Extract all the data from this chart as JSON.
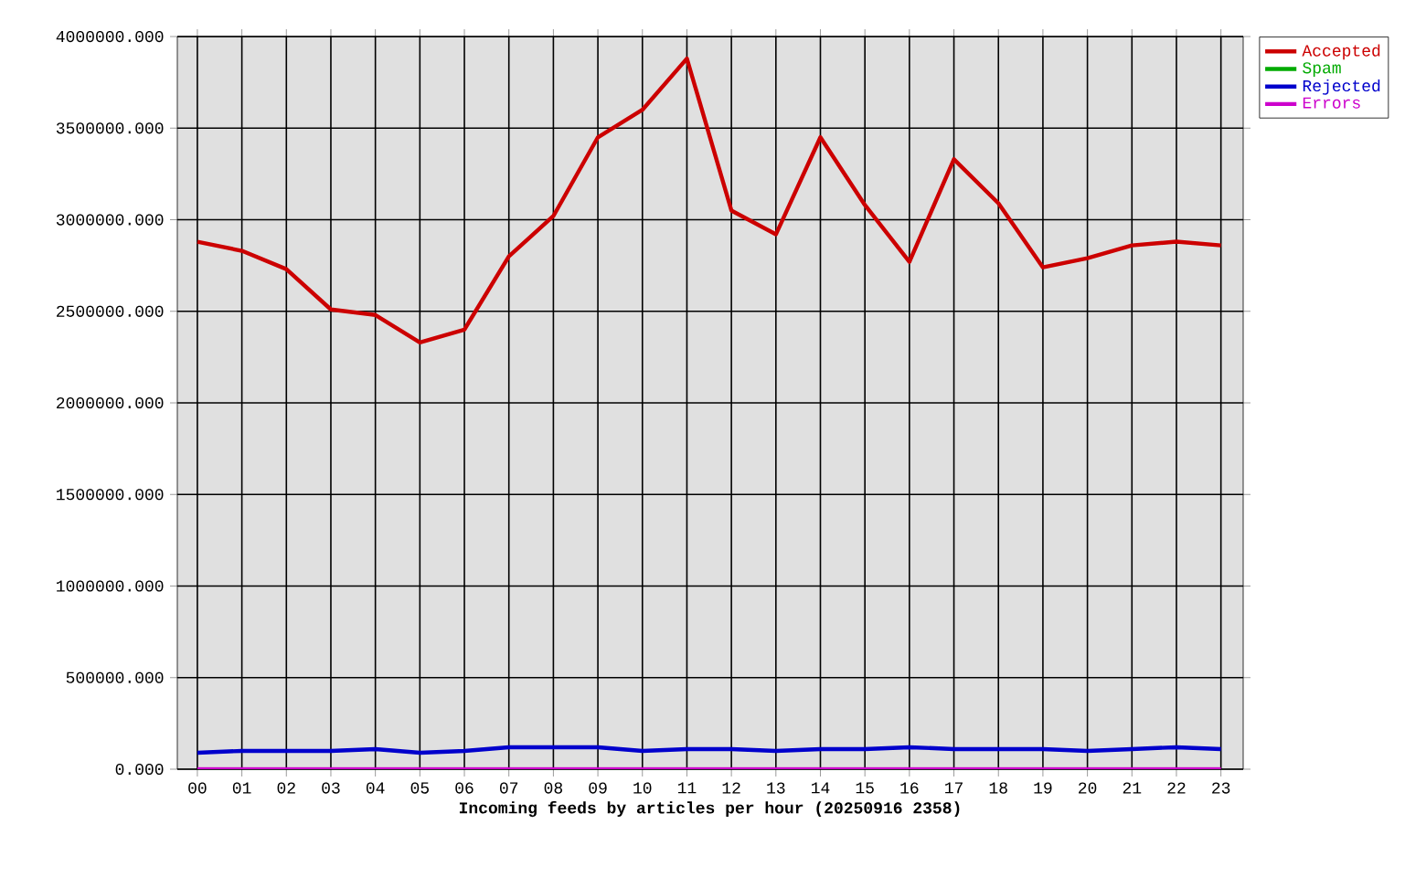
{
  "chart_data": {
    "type": "line",
    "xlabel": "Incoming feeds by articles per hour (20250916 2358)",
    "categories": [
      "00",
      "01",
      "02",
      "03",
      "04",
      "05",
      "06",
      "07",
      "08",
      "09",
      "10",
      "11",
      "12",
      "13",
      "14",
      "15",
      "16",
      "17",
      "18",
      "19",
      "20",
      "21",
      "22",
      "23"
    ],
    "series": [
      {
        "name": "Accepted",
        "color": "#cc0000",
        "values": [
          2880000,
          2830000,
          2730000,
          2510000,
          2480000,
          2330000,
          2400000,
          2800000,
          3020000,
          3450000,
          3600000,
          3880000,
          3050000,
          2920000,
          3450000,
          3080000,
          2770000,
          3330000,
          3090000,
          2740000,
          2790000,
          2860000,
          2880000,
          2860000
        ]
      },
      {
        "name": "Spam",
        "color": "#00aa00",
        "values": [
          null,
          null,
          null,
          null,
          null,
          null,
          null,
          null,
          null,
          null,
          null,
          null,
          null,
          null,
          null,
          null,
          null,
          null,
          null,
          null,
          null,
          null,
          null,
          null
        ]
      },
      {
        "name": "Rejected",
        "color": "#0000cc",
        "values": [
          90000,
          100000,
          100000,
          100000,
          110000,
          90000,
          100000,
          120000,
          120000,
          120000,
          100000,
          110000,
          110000,
          100000,
          110000,
          110000,
          120000,
          110000,
          110000,
          110000,
          100000,
          110000,
          120000,
          110000
        ]
      },
      {
        "name": "Errors",
        "color": "#cc00cc",
        "values": [
          0,
          0,
          0,
          0,
          0,
          0,
          0,
          0,
          0,
          0,
          0,
          0,
          0,
          0,
          0,
          0,
          0,
          0,
          0,
          0,
          0,
          0,
          0,
          0
        ]
      }
    ],
    "ylim": [
      0,
      4000000
    ],
    "yticks": [
      {
        "value": 0,
        "label": "0.000"
      },
      {
        "value": 500000,
        "label": "500000.000"
      },
      {
        "value": 1000000,
        "label": "1000000.000"
      },
      {
        "value": 1500000,
        "label": "1500000.000"
      },
      {
        "value": 2000000,
        "label": "2000000.000"
      },
      {
        "value": 2500000,
        "label": "2500000.000"
      },
      {
        "value": 3000000,
        "label": "3000000.000"
      },
      {
        "value": 3500000,
        "label": "3500000.000"
      },
      {
        "value": 4000000,
        "label": "4000000.000"
      }
    ],
    "grid": true,
    "legend": "top right",
    "marker": "none",
    "line_style": "solid"
  }
}
